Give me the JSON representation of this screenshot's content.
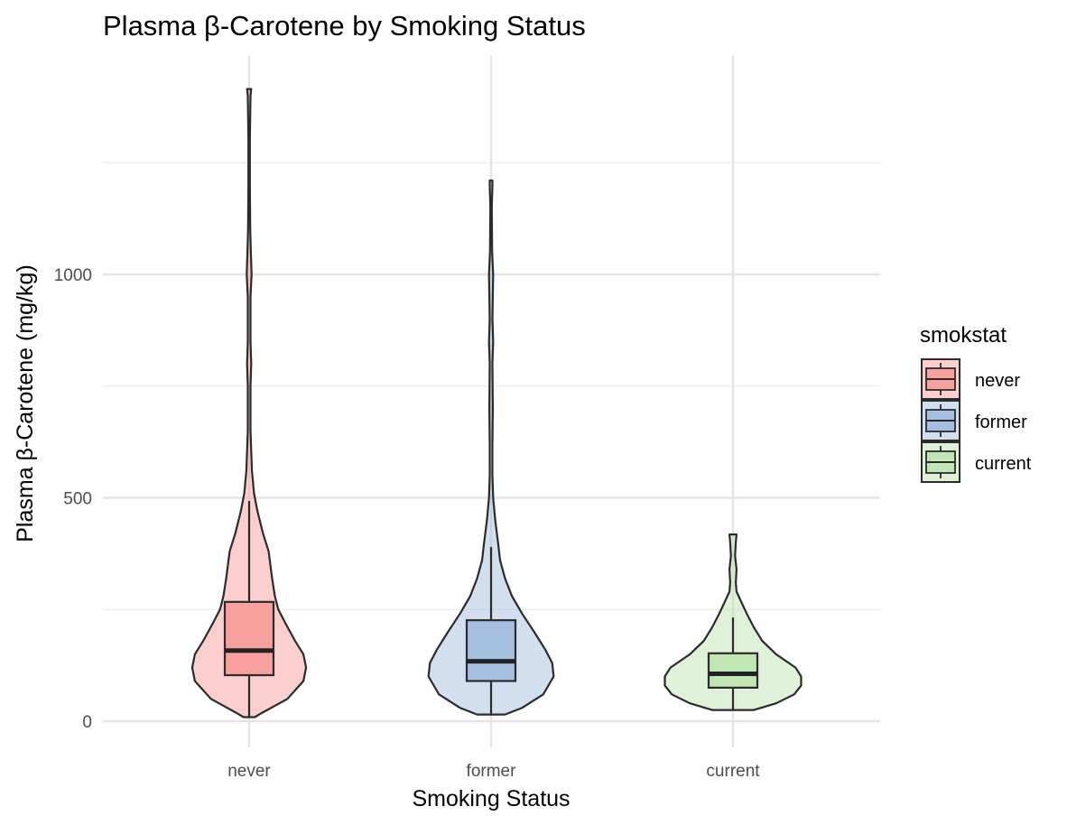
{
  "chart_data": {
    "type": "violin",
    "title": "Plasma β-Carotene by Smoking Status",
    "xlabel": "Smoking Status",
    "ylabel": "Plasma β-Carotene (mg/kg)",
    "ylim": [
      -25,
      1490
    ],
    "y_ticks": [
      0,
      500,
      1000
    ],
    "y_tick_labels": [
      "0",
      "500",
      "1000"
    ],
    "grid": true,
    "legend": {
      "title": "smokstat",
      "position": "right"
    },
    "categories": [
      "never",
      "former",
      "current"
    ],
    "series": [
      {
        "name": "never",
        "fill": "#F8A09C",
        "box": {
          "min": 9,
          "q1": 103,
          "median": 158,
          "q3": 267,
          "max": 493
        },
        "violin_max": 1415,
        "violin_width_profile": [
          [
            9,
            0.08
          ],
          [
            20,
            0.2
          ],
          [
            50,
            0.55
          ],
          [
            90,
            0.78
          ],
          [
            120,
            0.82
          ],
          [
            150,
            0.78
          ],
          [
            180,
            0.66
          ],
          [
            220,
            0.52
          ],
          [
            250,
            0.42
          ],
          [
            280,
            0.37
          ],
          [
            320,
            0.33
          ],
          [
            380,
            0.28
          ],
          [
            420,
            0.2
          ],
          [
            470,
            0.12
          ],
          [
            510,
            0.07
          ],
          [
            560,
            0.04
          ],
          [
            650,
            0.02
          ],
          [
            750,
            0.02
          ],
          [
            800,
            0.03
          ],
          [
            850,
            0.02
          ],
          [
            950,
            0.02
          ],
          [
            1000,
            0.035
          ],
          [
            1050,
            0.025
          ],
          [
            1100,
            0.015
          ],
          [
            1200,
            0.01
          ],
          [
            1300,
            0.01
          ],
          [
            1400,
            0.02
          ],
          [
            1415,
            0.03
          ]
        ]
      },
      {
        "name": "former",
        "fill": "#A4C0DE",
        "box": {
          "min": 15,
          "q1": 90,
          "median": 134,
          "q3": 226,
          "max": 390
        },
        "violin_max": 1210,
        "violin_width_profile": [
          [
            15,
            0.2
          ],
          [
            30,
            0.45
          ],
          [
            60,
            0.75
          ],
          [
            100,
            0.9
          ],
          [
            130,
            0.88
          ],
          [
            160,
            0.78
          ],
          [
            200,
            0.62
          ],
          [
            240,
            0.45
          ],
          [
            280,
            0.3
          ],
          [
            320,
            0.2
          ],
          [
            360,
            0.13
          ],
          [
            400,
            0.1
          ],
          [
            450,
            0.06
          ],
          [
            500,
            0.03
          ],
          [
            550,
            0.02
          ],
          [
            620,
            0.02
          ],
          [
            700,
            0.025
          ],
          [
            800,
            0.02
          ],
          [
            850,
            0.03
          ],
          [
            900,
            0.02
          ],
          [
            1000,
            0.03
          ],
          [
            1050,
            0.015
          ],
          [
            1150,
            0.01
          ],
          [
            1200,
            0.02
          ],
          [
            1210,
            0.02
          ]
        ]
      },
      {
        "name": "current",
        "fill": "#BFE6B3",
        "box": {
          "min": 25,
          "q1": 75,
          "median": 106,
          "q3": 152,
          "max": 232
        },
        "violin_max": 418,
        "violin_width_profile": [
          [
            25,
            0.3
          ],
          [
            40,
            0.62
          ],
          [
            60,
            0.88
          ],
          [
            80,
            0.98
          ],
          [
            100,
            0.98
          ],
          [
            120,
            0.9
          ],
          [
            150,
            0.62
          ],
          [
            180,
            0.42
          ],
          [
            210,
            0.3
          ],
          [
            240,
            0.2
          ],
          [
            270,
            0.11
          ],
          [
            290,
            0.05
          ],
          [
            310,
            0.04
          ],
          [
            340,
            0.05
          ],
          [
            370,
            0.03
          ],
          [
            400,
            0.04
          ],
          [
            418,
            0.05
          ]
        ]
      }
    ]
  }
}
